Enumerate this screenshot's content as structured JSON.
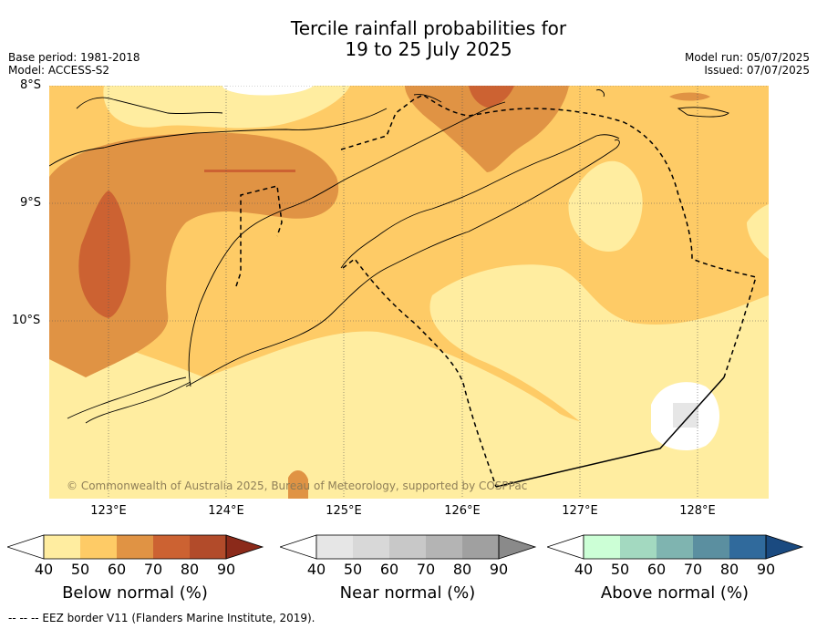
{
  "header": {
    "title_line1": "Tercile rainfall probabilities for",
    "title_line2": "19 to 25 July 2025",
    "base_period": "Base period: 1981-2018",
    "model": "Model: ACCESS-S2",
    "model_run": "Model run: 05/07/2025",
    "issued": "Issued: 07/07/2025"
  },
  "map": {
    "lat_labels": [
      "8°S",
      "9°S",
      "10°S"
    ],
    "lon_labels": [
      "123°E",
      "124°E",
      "125°E",
      "126°E",
      "127°E",
      "128°E"
    ],
    "copyright": "© Commonwealth of Australia 2025, Bureau of Meteorology, supported by COSPPac"
  },
  "colorbars": [
    {
      "label": "Below normal (%)",
      "ticks": [
        "40",
        "50",
        "60",
        "70",
        "80",
        "90"
      ],
      "colors": [
        "#ffeda0",
        "#fecb66",
        "#e09344",
        "#cc6232",
        "#b24b2a",
        "#8b2a1a"
      ]
    },
    {
      "label": "Near normal (%)",
      "ticks": [
        "40",
        "50",
        "60",
        "70",
        "80",
        "90"
      ],
      "colors": [
        "#e6e6e6",
        "#d8d8d8",
        "#c8c8c8",
        "#b4b4b4",
        "#a0a0a0",
        "#8a8a8a"
      ]
    },
    {
      "label": "Above normal (%)",
      "ticks": [
        "40",
        "50",
        "60",
        "70",
        "80",
        "90"
      ],
      "colors": [
        "#ccffd6",
        "#a3d9c0",
        "#7fb4b0",
        "#5b8fa0",
        "#306a9c",
        "#1a4a80"
      ]
    }
  ],
  "footer": {
    "eez_note": "--  --  -- EEZ border V11 (Flanders Marine Institute, 2019)."
  }
}
